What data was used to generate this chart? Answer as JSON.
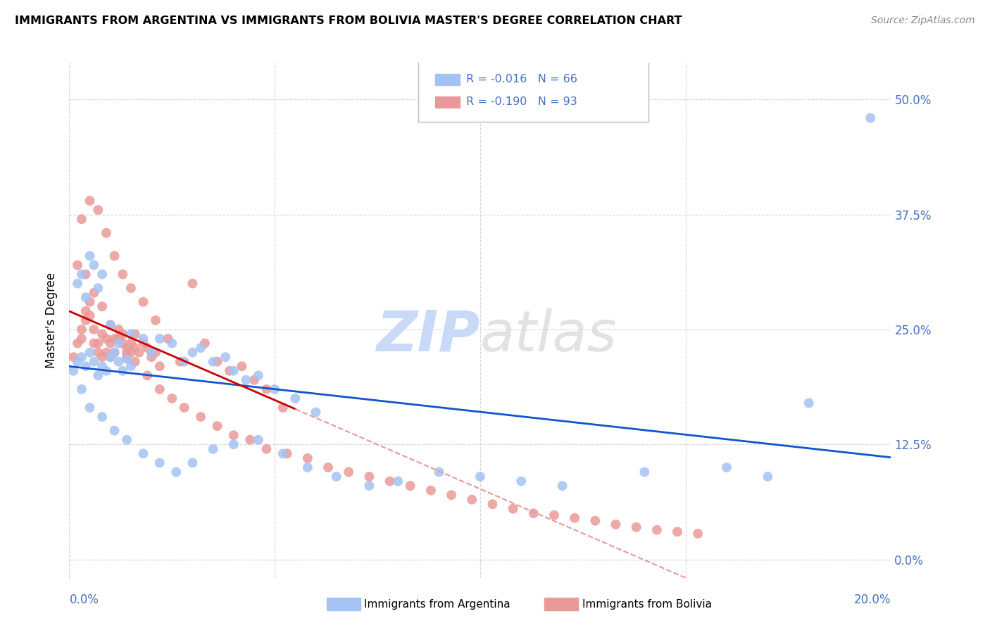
{
  "title": "IMMIGRANTS FROM ARGENTINA VS IMMIGRANTS FROM BOLIVIA MASTER'S DEGREE CORRELATION CHART",
  "source": "Source: ZipAtlas.com",
  "ylabel": "Master's Degree",
  "ytick_labels": [
    "0.0%",
    "12.5%",
    "25.0%",
    "37.5%",
    "50.0%"
  ],
  "ytick_values": [
    0.0,
    0.125,
    0.25,
    0.375,
    0.5
  ],
  "xtick_values": [
    0.0,
    0.05,
    0.1,
    0.15,
    0.2
  ],
  "xlim": [
    0.0,
    0.2
  ],
  "ylim": [
    -0.02,
    0.54
  ],
  "argentina_R": "-0.016",
  "argentina_N": "66",
  "bolivia_R": "-0.190",
  "bolivia_N": "93",
  "argentina_color": "#a4c2f4",
  "bolivia_color": "#ea9999",
  "argentina_line_color": "#1155cc",
  "bolivia_line_color": "#cc0000",
  "bolivia_dashed_color": "#ea9999",
  "watermark_color": "#c9daf8",
  "background_color": "#ffffff",
  "grid_color": "#cccccc",
  "title_color": "#000000",
  "axis_label_color": "#4472c4",
  "legend_label_argentina": "Immigrants from Argentina",
  "legend_label_bolivia": "Immigrants from Bolivia",
  "argentina_x": [
    0.001,
    0.002,
    0.003,
    0.004,
    0.005,
    0.006,
    0.007,
    0.008,
    0.009,
    0.01,
    0.011,
    0.012,
    0.013,
    0.014,
    0.015,
    0.002,
    0.003,
    0.004,
    0.005,
    0.006,
    0.007,
    0.008,
    0.01,
    0.012,
    0.015,
    0.018,
    0.02,
    0.022,
    0.025,
    0.028,
    0.03,
    0.032,
    0.035,
    0.038,
    0.04,
    0.043,
    0.046,
    0.05,
    0.055,
    0.06,
    0.003,
    0.005,
    0.008,
    0.011,
    0.014,
    0.018,
    0.022,
    0.026,
    0.03,
    0.035,
    0.04,
    0.046,
    0.052,
    0.058,
    0.065,
    0.073,
    0.08,
    0.09,
    0.1,
    0.11,
    0.12,
    0.14,
    0.16,
    0.17,
    0.18,
    0.195
  ],
  "argentina_y": [
    0.205,
    0.215,
    0.22,
    0.21,
    0.225,
    0.215,
    0.2,
    0.21,
    0.205,
    0.22,
    0.225,
    0.215,
    0.205,
    0.218,
    0.21,
    0.3,
    0.31,
    0.285,
    0.33,
    0.32,
    0.295,
    0.31,
    0.255,
    0.235,
    0.245,
    0.24,
    0.225,
    0.24,
    0.235,
    0.215,
    0.225,
    0.23,
    0.215,
    0.22,
    0.205,
    0.195,
    0.2,
    0.185,
    0.175,
    0.16,
    0.185,
    0.165,
    0.155,
    0.14,
    0.13,
    0.115,
    0.105,
    0.095,
    0.105,
    0.12,
    0.125,
    0.13,
    0.115,
    0.1,
    0.09,
    0.08,
    0.085,
    0.095,
    0.09,
    0.085,
    0.08,
    0.095,
    0.1,
    0.09,
    0.17,
    0.48
  ],
  "bolivia_x": [
    0.001,
    0.002,
    0.003,
    0.003,
    0.004,
    0.004,
    0.005,
    0.005,
    0.006,
    0.006,
    0.007,
    0.007,
    0.008,
    0.008,
    0.009,
    0.009,
    0.01,
    0.01,
    0.011,
    0.011,
    0.012,
    0.012,
    0.013,
    0.013,
    0.014,
    0.014,
    0.015,
    0.015,
    0.016,
    0.016,
    0.017,
    0.018,
    0.019,
    0.02,
    0.021,
    0.022,
    0.003,
    0.005,
    0.007,
    0.009,
    0.011,
    0.013,
    0.015,
    0.018,
    0.021,
    0.024,
    0.027,
    0.03,
    0.033,
    0.036,
    0.039,
    0.042,
    0.045,
    0.048,
    0.052,
    0.002,
    0.004,
    0.006,
    0.008,
    0.01,
    0.012,
    0.014,
    0.016,
    0.019,
    0.022,
    0.025,
    0.028,
    0.032,
    0.036,
    0.04,
    0.044,
    0.048,
    0.053,
    0.058,
    0.063,
    0.068,
    0.073,
    0.078,
    0.083,
    0.088,
    0.093,
    0.098,
    0.103,
    0.108,
    0.113,
    0.118,
    0.123,
    0.128,
    0.133,
    0.138,
    0.143,
    0.148,
    0.153
  ],
  "bolivia_y": [
    0.22,
    0.235,
    0.25,
    0.24,
    0.27,
    0.26,
    0.28,
    0.265,
    0.25,
    0.235,
    0.235,
    0.225,
    0.22,
    0.245,
    0.24,
    0.225,
    0.235,
    0.22,
    0.24,
    0.225,
    0.25,
    0.24,
    0.245,
    0.235,
    0.23,
    0.22,
    0.235,
    0.225,
    0.245,
    0.23,
    0.225,
    0.235,
    0.23,
    0.22,
    0.225,
    0.21,
    0.37,
    0.39,
    0.38,
    0.355,
    0.33,
    0.31,
    0.295,
    0.28,
    0.26,
    0.24,
    0.215,
    0.3,
    0.235,
    0.215,
    0.205,
    0.21,
    0.195,
    0.185,
    0.165,
    0.32,
    0.31,
    0.29,
    0.275,
    0.255,
    0.24,
    0.225,
    0.215,
    0.2,
    0.185,
    0.175,
    0.165,
    0.155,
    0.145,
    0.135,
    0.13,
    0.12,
    0.115,
    0.11,
    0.1,
    0.095,
    0.09,
    0.085,
    0.08,
    0.075,
    0.07,
    0.065,
    0.06,
    0.055,
    0.05,
    0.048,
    0.045,
    0.042,
    0.038,
    0.035,
    0.032,
    0.03,
    0.028
  ]
}
